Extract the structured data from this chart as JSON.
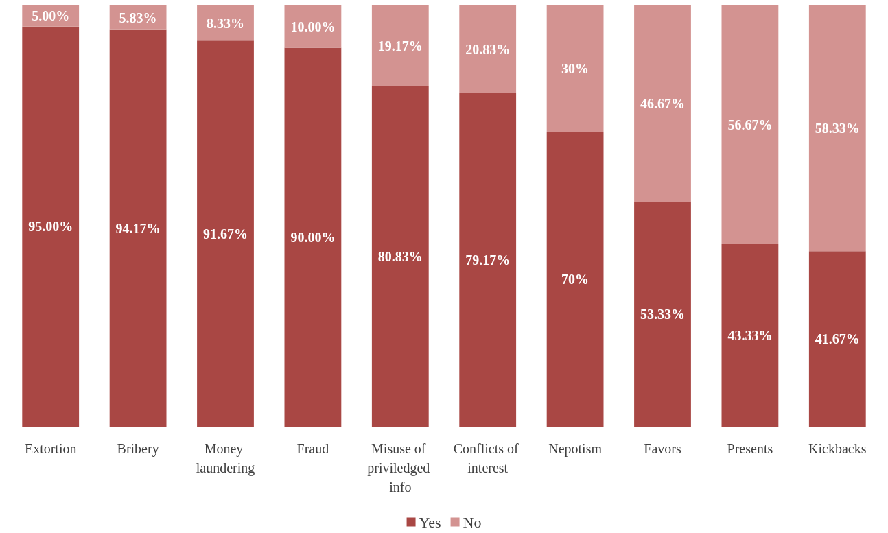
{
  "chart_data": {
    "type": "bar",
    "stacked": true,
    "categories": [
      "Extortion",
      "Bribery",
      "Money laundering",
      "Fraud",
      "Misuse of priviledged info",
      "Conflicts of interest",
      "Nepotism",
      "Favors",
      "Presents",
      "Kickbacks"
    ],
    "series": [
      {
        "name": "Yes",
        "color": "#a94744",
        "values": [
          95,
          94.17,
          91.67,
          90,
          80.83,
          79.17,
          70,
          53.33,
          43.33,
          41.67
        ],
        "value_labels": [
          "95.00%",
          "94.17%",
          "91.67%",
          "90.00%",
          "80.83%",
          "79.17%",
          "70%",
          "53.33%",
          "43.33%",
          "41.67%"
        ]
      },
      {
        "name": "No",
        "color": "#d39391",
        "values": [
          5,
          5.83,
          8.33,
          10,
          19.17,
          20.83,
          30,
          46.67,
          56.67,
          58.33
        ],
        "value_labels": [
          "5.00%",
          "5.83%",
          "8.33%",
          "10.00%",
          "19.17%",
          "20.83%",
          "30%",
          "46.67%",
          "56.67%",
          "58.33%"
        ]
      }
    ],
    "ylim": [
      0,
      100
    ],
    "tick_labels": "x",
    "grid": false,
    "legend": "bottom"
  }
}
